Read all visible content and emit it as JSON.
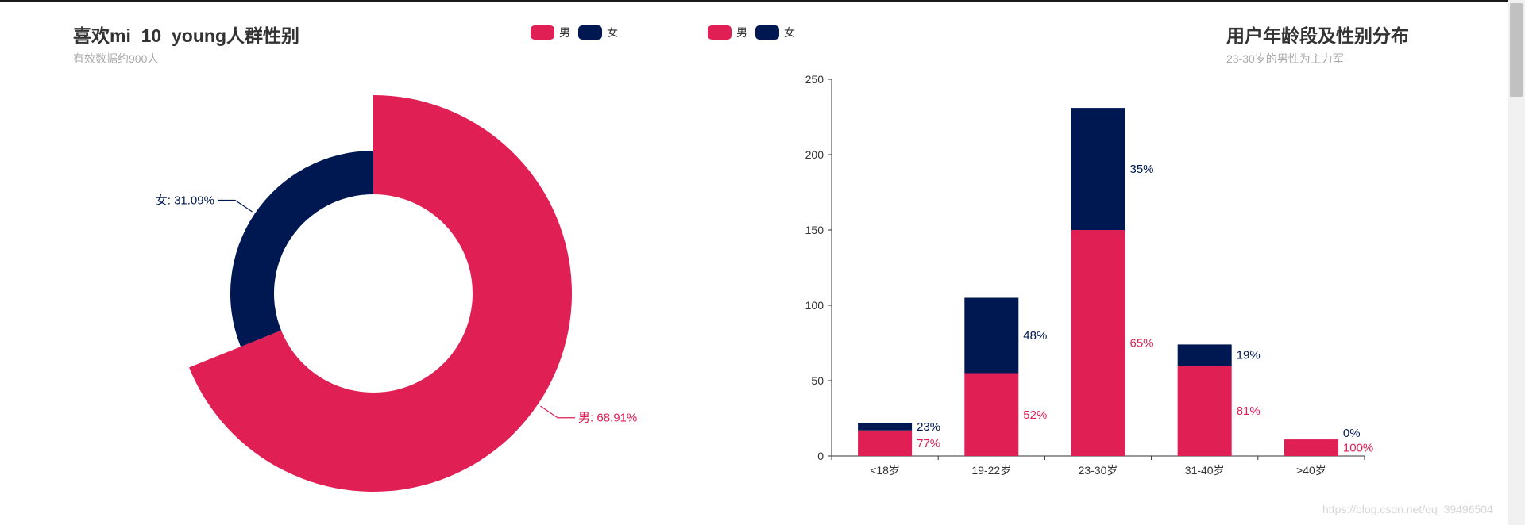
{
  "colors": {
    "male": "#e01f54",
    "female": "#001852",
    "axis": "#333333"
  },
  "left_panel": {
    "title": "喜欢mi_10_young人群性别",
    "subtitle": "有效数据约900人",
    "legend": [
      "男",
      "女"
    ]
  },
  "right_panel": {
    "title": "用户年龄段及性别分布",
    "subtitle": "23-30岁的男性为主力军",
    "legend": [
      "男",
      "女"
    ]
  },
  "watermark": "https://blog.csdn.net/qq_39496504",
  "chart_data": [
    {
      "type": "pie",
      "variant": "donut",
      "title": "喜欢mi_10_young人群性别",
      "subtitle": "有效数据约900人",
      "legend": [
        "男",
        "女"
      ],
      "slices": [
        {
          "name": "男",
          "value": 68.91,
          "label": "男: 68.91%",
          "color": "#e01f54"
        },
        {
          "name": "女",
          "value": 31.09,
          "label": "女: 31.09%",
          "color": "#001852"
        }
      ]
    },
    {
      "type": "bar",
      "stacked": true,
      "title": "用户年龄段及性别分布",
      "subtitle": "23-30岁的男性为主力军",
      "categories": [
        "<18岁",
        "19-22岁",
        "23-30岁",
        "31-40岁",
        ">40岁"
      ],
      "ylim": [
        0,
        250
      ],
      "yticks": [
        0,
        50,
        100,
        150,
        200,
        250
      ],
      "legend": [
        "男",
        "女"
      ],
      "series": [
        {
          "name": "男",
          "color": "#e01f54",
          "values": [
            17,
            55,
            150,
            60,
            11
          ],
          "labels": [
            "77%",
            "52%",
            "65%",
            "81%",
            "100%"
          ]
        },
        {
          "name": "女",
          "color": "#001852",
          "values": [
            5,
            50,
            81,
            14,
            0
          ],
          "labels": [
            "23%",
            "48%",
            "35%",
            "19%",
            "0%"
          ]
        }
      ]
    }
  ]
}
